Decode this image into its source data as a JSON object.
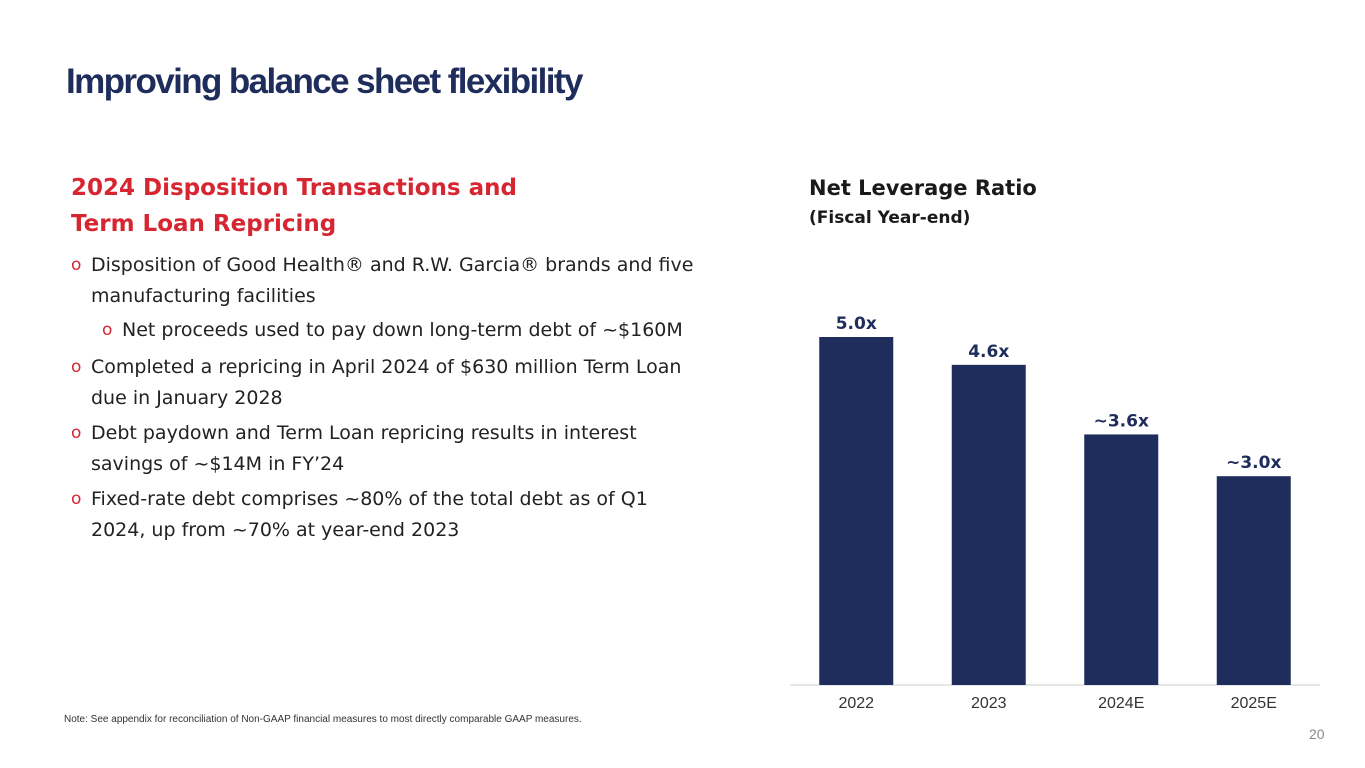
{
  "slide": {
    "title": "Improving balance sheet flexibility",
    "page_number": "20",
    "note": "Note: See appendix for reconciliation of Non-GAAP financial measures to most directly comparable GAAP measures."
  },
  "section": {
    "heading_line1": "2024 Disposition Transactions and",
    "heading_line2": "Term Loan Repricing",
    "bullet_marker": "o",
    "bullets": [
      {
        "line1": "Disposition of Good Health® and R.W. Garcia® brands and five",
        "line2": "manufacturing facilities"
      },
      {
        "line1": "Net proceeds used to pay down long-term debt of ~$160M"
      },
      {
        "line1": "Completed a repricing in April 2024 of $630 million Term Loan",
        "line2": "due in January 2028"
      },
      {
        "line1": "Debt paydown and Term Loan repricing results in interest",
        "line2": "savings of ~$14M in FY’24"
      },
      {
        "line1": "Fixed-rate debt comprises ~80% of the total debt as of Q1",
        "line2": "2024, up from ~70% at year-end 2023"
      }
    ]
  },
  "chart_data": {
    "type": "bar",
    "title": "Net Leverage Ratio",
    "subtitle": "(Fiscal Year-end)",
    "categories": [
      "2022",
      "2023",
      "2024E",
      "2025E"
    ],
    "values": [
      5.0,
      4.6,
      3.6,
      3.0
    ],
    "data_labels": [
      "5.0x",
      "4.6x",
      "~3.6x",
      "~3.0x"
    ],
    "ylim": [
      0,
      5.0
    ],
    "xlabel": "",
    "ylabel": "",
    "grid": false,
    "bar_color": "#1f2d5c",
    "label_color": "#1f2d5c"
  }
}
